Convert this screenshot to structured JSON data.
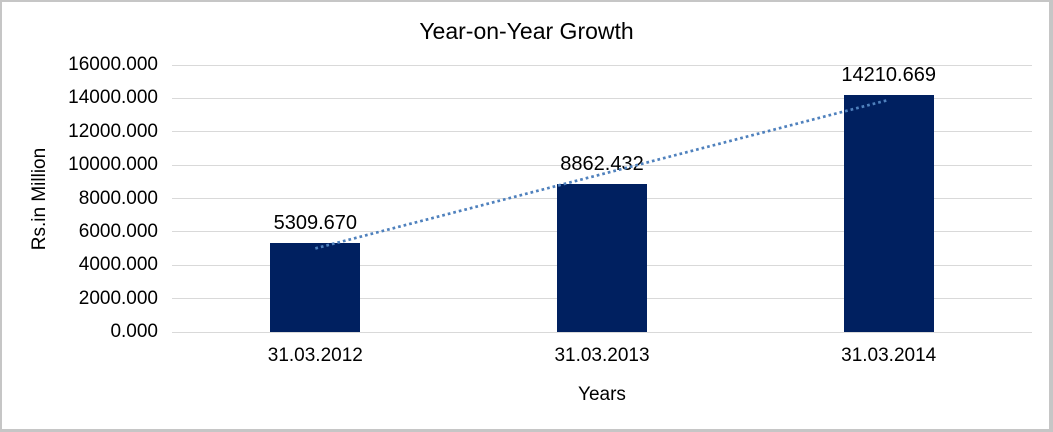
{
  "chart_data": {
    "type": "bar",
    "title": "Year-on-Year Growth",
    "xlabel": "Years",
    "ylabel": "Rs.in Million",
    "categories": [
      "31.03.2012",
      "31.03.2013",
      "31.03.2014"
    ],
    "values": [
      5309.67,
      8862.432,
      14210.669
    ],
    "data_labels": [
      "5309.670",
      "8862.432",
      "14210.669"
    ],
    "ylim": [
      0,
      16000
    ],
    "ytick_step": 2000,
    "ytick_labels": [
      "0.000",
      "2000.000",
      "4000.000",
      "6000.000",
      "8000.000",
      "10000.000",
      "12000.000",
      "14000.000",
      "16000.000"
    ],
    "grid": "horizontal-only",
    "legend": "none",
    "bar_color": "#002060",
    "gridline_color": "#d9d9d9",
    "frame_border_color": "#c6c6c6",
    "text_color": "#000000",
    "trendline": {
      "type": "linear",
      "style": "dotted",
      "color": "#4f81bd",
      "start_value": 5010.4,
      "end_value": 13911.4
    }
  }
}
